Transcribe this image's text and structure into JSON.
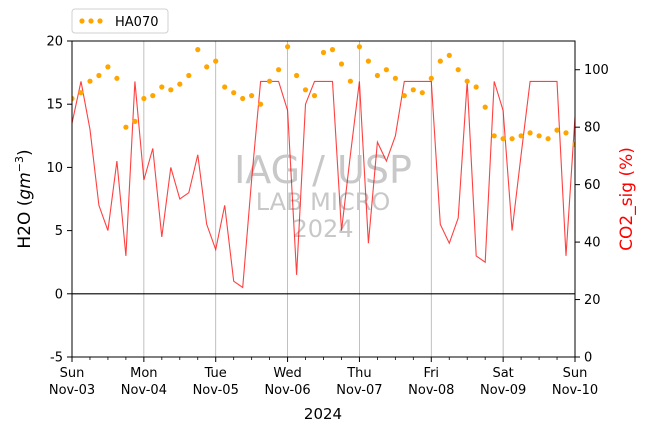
{
  "chart_data": {
    "type": "line",
    "xlabel": "2024",
    "ylabel_left": "H2O (gm⁻³)",
    "ylabel_right": "CO2_sig (%)",
    "x_range": [
      "2024-11-03",
      "2024-11-10"
    ],
    "ylim_left": [
      -5,
      20
    ],
    "ylim_right": [
      0,
      110
    ],
    "yticks_left": [
      -5,
      0,
      5,
      10,
      15,
      20
    ],
    "yticks_right": [
      0,
      20,
      40,
      60,
      80,
      100
    ],
    "x_ticks": [
      {
        "day": "Sun",
        "date": "Nov-03"
      },
      {
        "day": "Mon",
        "date": "Nov-04"
      },
      {
        "day": "Tue",
        "date": "Nov-05"
      },
      {
        "day": "Wed",
        "date": "Nov-06"
      },
      {
        "day": "Thu",
        "date": "Nov-07"
      },
      {
        "day": "Fri",
        "date": "Nov-08"
      },
      {
        "day": "Sat",
        "date": "Nov-09"
      },
      {
        "day": "Sun",
        "date": "Nov-10"
      }
    ],
    "grid": "vertical",
    "zero_line": 0,
    "legend": {
      "placement": "top-left",
      "entries": [
        "HA070"
      ]
    },
    "watermark": [
      "IAG / USP",
      "LAB MICRO",
      "2024"
    ],
    "colors": {
      "h2o": "#ff0000",
      "co2": "#ffa500",
      "grid": "#b0b0b0",
      "watermark": "#c8c8c8",
      "right_axis_label": "#ff0000"
    },
    "series": [
      {
        "axis": "left",
        "style": "line",
        "x": [
          "2024-11-03 00:00",
          "2024-11-03 03:00",
          "2024-11-03 06:00",
          "2024-11-03 09:00",
          "2024-11-03 12:00",
          "2024-11-03 15:00",
          "2024-11-03 18:00",
          "2024-11-03 21:00",
          "2024-11-04 00:00",
          "2024-11-04 03:00",
          "2024-11-04 06:00",
          "2024-11-04 09:00",
          "2024-11-04 12:00",
          "2024-11-04 15:00",
          "2024-11-04 18:00",
          "2024-11-04 21:00",
          "2024-11-05 00:00",
          "2024-11-05 03:00",
          "2024-11-05 06:00",
          "2024-11-05 09:00",
          "2024-11-05 12:00",
          "2024-11-05 15:00",
          "2024-11-05 18:00",
          "2024-11-05 21:00",
          "2024-11-06 00:00",
          "2024-11-06 03:00",
          "2024-11-06 06:00",
          "2024-11-06 09:00",
          "2024-11-06 12:00",
          "2024-11-06 15:00",
          "2024-11-06 18:00",
          "2024-11-06 21:00",
          "2024-11-07 00:00",
          "2024-11-07 03:00",
          "2024-11-07 06:00",
          "2024-11-07 09:00",
          "2024-11-07 12:00",
          "2024-11-07 15:00",
          "2024-11-07 18:00",
          "2024-11-07 21:00",
          "2024-11-08 00:00",
          "2024-11-08 03:00",
          "2024-11-08 06:00",
          "2024-11-08 09:00",
          "2024-11-08 12:00",
          "2024-11-08 15:00",
          "2024-11-08 18:00",
          "2024-11-08 21:00",
          "2024-11-09 00:00",
          "2024-11-09 03:00",
          "2024-11-09 06:00",
          "2024-11-09 09:00",
          "2024-11-09 12:00",
          "2024-11-09 15:00",
          "2024-11-09 18:00",
          "2024-11-09 21:00",
          "2024-11-10 00:00"
        ],
        "values": [
          13.5,
          16.8,
          13.0,
          7.0,
          5.0,
          10.5,
          3.0,
          16.8,
          9.0,
          11.5,
          4.5,
          10.0,
          7.5,
          8.0,
          11.0,
          5.5,
          3.5,
          7.0,
          1.0,
          0.5,
          9.0,
          16.8,
          16.8,
          16.8,
          14.5,
          1.5,
          15.0,
          16.8,
          16.8,
          16.8,
          5.0,
          11.0,
          16.8,
          4.0,
          12.0,
          10.5,
          12.5,
          16.8,
          16.8,
          16.8,
          16.8,
          5.5,
          4.0,
          6.0,
          16.8,
          3.0,
          2.5,
          16.8,
          14.5,
          5.0,
          11.0,
          16.8,
          16.8,
          16.8,
          16.8,
          3.0,
          14.0
        ]
      },
      {
        "name": "HA070",
        "axis": "right",
        "style": "dots",
        "x": [
          "2024-11-03 00:00",
          "2024-11-03 03:00",
          "2024-11-03 06:00",
          "2024-11-03 09:00",
          "2024-11-03 12:00",
          "2024-11-03 15:00",
          "2024-11-03 18:00",
          "2024-11-03 21:00",
          "2024-11-04 00:00",
          "2024-11-04 03:00",
          "2024-11-04 06:00",
          "2024-11-04 09:00",
          "2024-11-04 12:00",
          "2024-11-04 15:00",
          "2024-11-04 18:00",
          "2024-11-04 21:00",
          "2024-11-05 00:00",
          "2024-11-05 03:00",
          "2024-11-05 06:00",
          "2024-11-05 09:00",
          "2024-11-05 12:00",
          "2024-11-05 15:00",
          "2024-11-05 18:00",
          "2024-11-05 21:00",
          "2024-11-06 00:00",
          "2024-11-06 03:00",
          "2024-11-06 06:00",
          "2024-11-06 09:00",
          "2024-11-06 12:00",
          "2024-11-06 15:00",
          "2024-11-06 18:00",
          "2024-11-06 21:00",
          "2024-11-07 00:00",
          "2024-11-07 03:00",
          "2024-11-07 06:00",
          "2024-11-07 09:00",
          "2024-11-07 12:00",
          "2024-11-07 15:00",
          "2024-11-07 18:00",
          "2024-11-07 21:00",
          "2024-11-08 00:00",
          "2024-11-08 03:00",
          "2024-11-08 06:00",
          "2024-11-08 09:00",
          "2024-11-08 12:00",
          "2024-11-08 15:00",
          "2024-11-08 18:00",
          "2024-11-08 21:00",
          "2024-11-09 00:00",
          "2024-11-09 03:00",
          "2024-11-09 06:00",
          "2024-11-09 09:00",
          "2024-11-09 12:00",
          "2024-11-09 15:00",
          "2024-11-09 18:00",
          "2024-11-09 21:00",
          "2024-11-10 00:00"
        ],
        "values": [
          90,
          92,
          96,
          98,
          101,
          97,
          80,
          82,
          90,
          91,
          94,
          93,
          95,
          98,
          107,
          101,
          103,
          94,
          92,
          90,
          91,
          88,
          96,
          100,
          108,
          98,
          93,
          91,
          106,
          107,
          102,
          96,
          108,
          103,
          98,
          100,
          97,
          91,
          93,
          92,
          97,
          103,
          105,
          100,
          96,
          94,
          87,
          77,
          76,
          76,
          77,
          78,
          77,
          76,
          79,
          78,
          74
        ]
      }
    ]
  }
}
